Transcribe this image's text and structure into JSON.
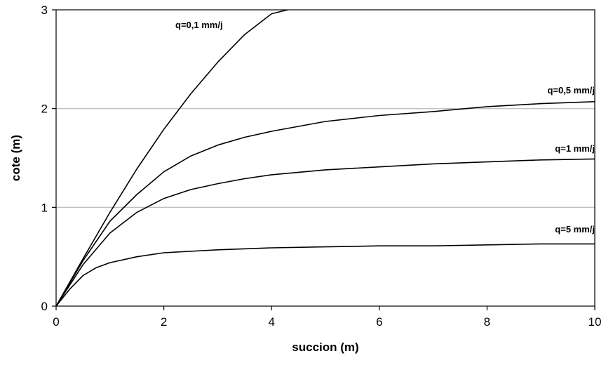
{
  "chart_data": {
    "type": "line",
    "title": "",
    "xlabel": "succion (m)",
    "ylabel": "cote (m)",
    "xlim": [
      0,
      10
    ],
    "ylim": [
      0,
      3
    ],
    "x_ticks": [
      0,
      2,
      4,
      6,
      8,
      10
    ],
    "y_ticks": [
      0,
      1,
      2,
      3
    ],
    "x_tick_labels": [
      "0",
      "2",
      "4",
      "6",
      "8",
      "10"
    ],
    "y_tick_labels": [
      "0",
      "1",
      "2",
      "3"
    ],
    "grid": "horizontal",
    "legend": "none",
    "line_color": "#000000",
    "grid_color": "#c0c0c0",
    "series": [
      {
        "name": "q=0,1 mm/j",
        "x": [
          0,
          0.5,
          1.0,
          1.5,
          2.0,
          2.5,
          3.0,
          3.5,
          4.0,
          4.3
        ],
        "y": [
          0,
          0.48,
          0.95,
          1.39,
          1.79,
          2.15,
          2.47,
          2.75,
          2.96,
          3.0
        ]
      },
      {
        "name": "q=0,5 mm/j",
        "x": [
          0,
          0.5,
          1.0,
          1.5,
          2.0,
          2.5,
          3.0,
          3.5,
          4.0,
          4.5,
          5.0,
          6.0,
          7.0,
          8.0,
          9.0,
          10.0
        ],
        "y": [
          0,
          0.46,
          0.86,
          1.13,
          1.36,
          1.52,
          1.63,
          1.71,
          1.77,
          1.82,
          1.87,
          1.93,
          1.97,
          2.02,
          2.05,
          2.07
        ]
      },
      {
        "name": "q=1 mm/j",
        "x": [
          0,
          0.5,
          1.0,
          1.5,
          2.0,
          2.5,
          3.0,
          3.5,
          4.0,
          5.0,
          6.0,
          7.0,
          8.0,
          9.0,
          10.0
        ],
        "y": [
          0,
          0.42,
          0.74,
          0.95,
          1.09,
          1.18,
          1.24,
          1.29,
          1.33,
          1.38,
          1.41,
          1.44,
          1.46,
          1.48,
          1.49
        ]
      },
      {
        "name": "q=5 mm/j",
        "x": [
          0,
          0.25,
          0.5,
          0.75,
          1.0,
          1.5,
          2.0,
          3.0,
          4.0,
          5.0,
          6.0,
          7.0,
          8.0,
          9.0,
          10.0
        ],
        "y": [
          0,
          0.17,
          0.31,
          0.39,
          0.44,
          0.5,
          0.54,
          0.57,
          0.59,
          0.6,
          0.61,
          0.61,
          0.62,
          0.63,
          0.63
        ]
      }
    ]
  }
}
